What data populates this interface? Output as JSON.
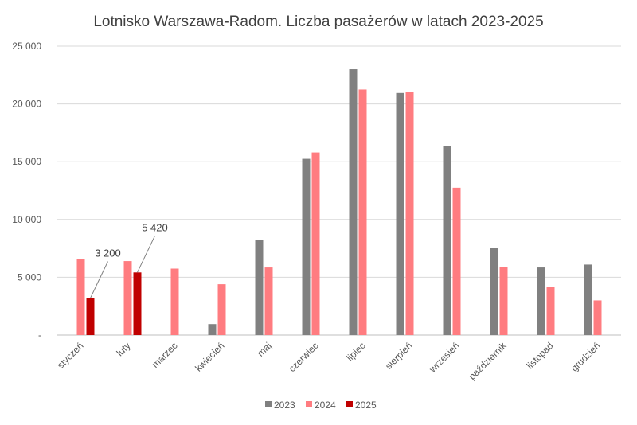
{
  "chart_data": {
    "type": "bar",
    "title": "Lotnisko Warszawa-Radom. Liczba pasażerów w latach 2023-2025",
    "xlabel": "",
    "ylabel": "",
    "categories": [
      "styczeń",
      "luty",
      "marzec",
      "kwiecień",
      "maj",
      "czerwiec",
      "lipiec",
      "sierpień",
      "wrzesień",
      "październik",
      "listopad",
      "grudzień"
    ],
    "series": [
      {
        "name": "2023",
        "color": "#808080",
        "values": [
          null,
          null,
          null,
          950,
          8250,
          15250,
          23000,
          20950,
          16350,
          7550,
          5850,
          6100
        ]
      },
      {
        "name": "2024",
        "color": "#ff7c80",
        "values": [
          6550,
          6400,
          5750,
          4400,
          5850,
          15800,
          21250,
          21050,
          12750,
          5900,
          4150,
          3000
        ]
      },
      {
        "name": "2025",
        "color": "#c00000",
        "values": [
          3200,
          5420,
          null,
          null,
          null,
          null,
          null,
          null,
          null,
          null,
          null,
          null
        ]
      }
    ],
    "ylim": [
      0,
      25000
    ],
    "yticks": [
      0,
      5000,
      10000,
      15000,
      20000,
      25000
    ],
    "ytick_labels": [
      "-",
      "5 000",
      "10 000",
      "15 000",
      "20 000",
      "25 000"
    ],
    "annotations": [
      {
        "category": "styczeń",
        "series": "2025",
        "text": "3 200"
      },
      {
        "category": "luty",
        "series": "2025",
        "text": "5 420"
      }
    ],
    "grid": true,
    "legend_position": "bottom"
  }
}
